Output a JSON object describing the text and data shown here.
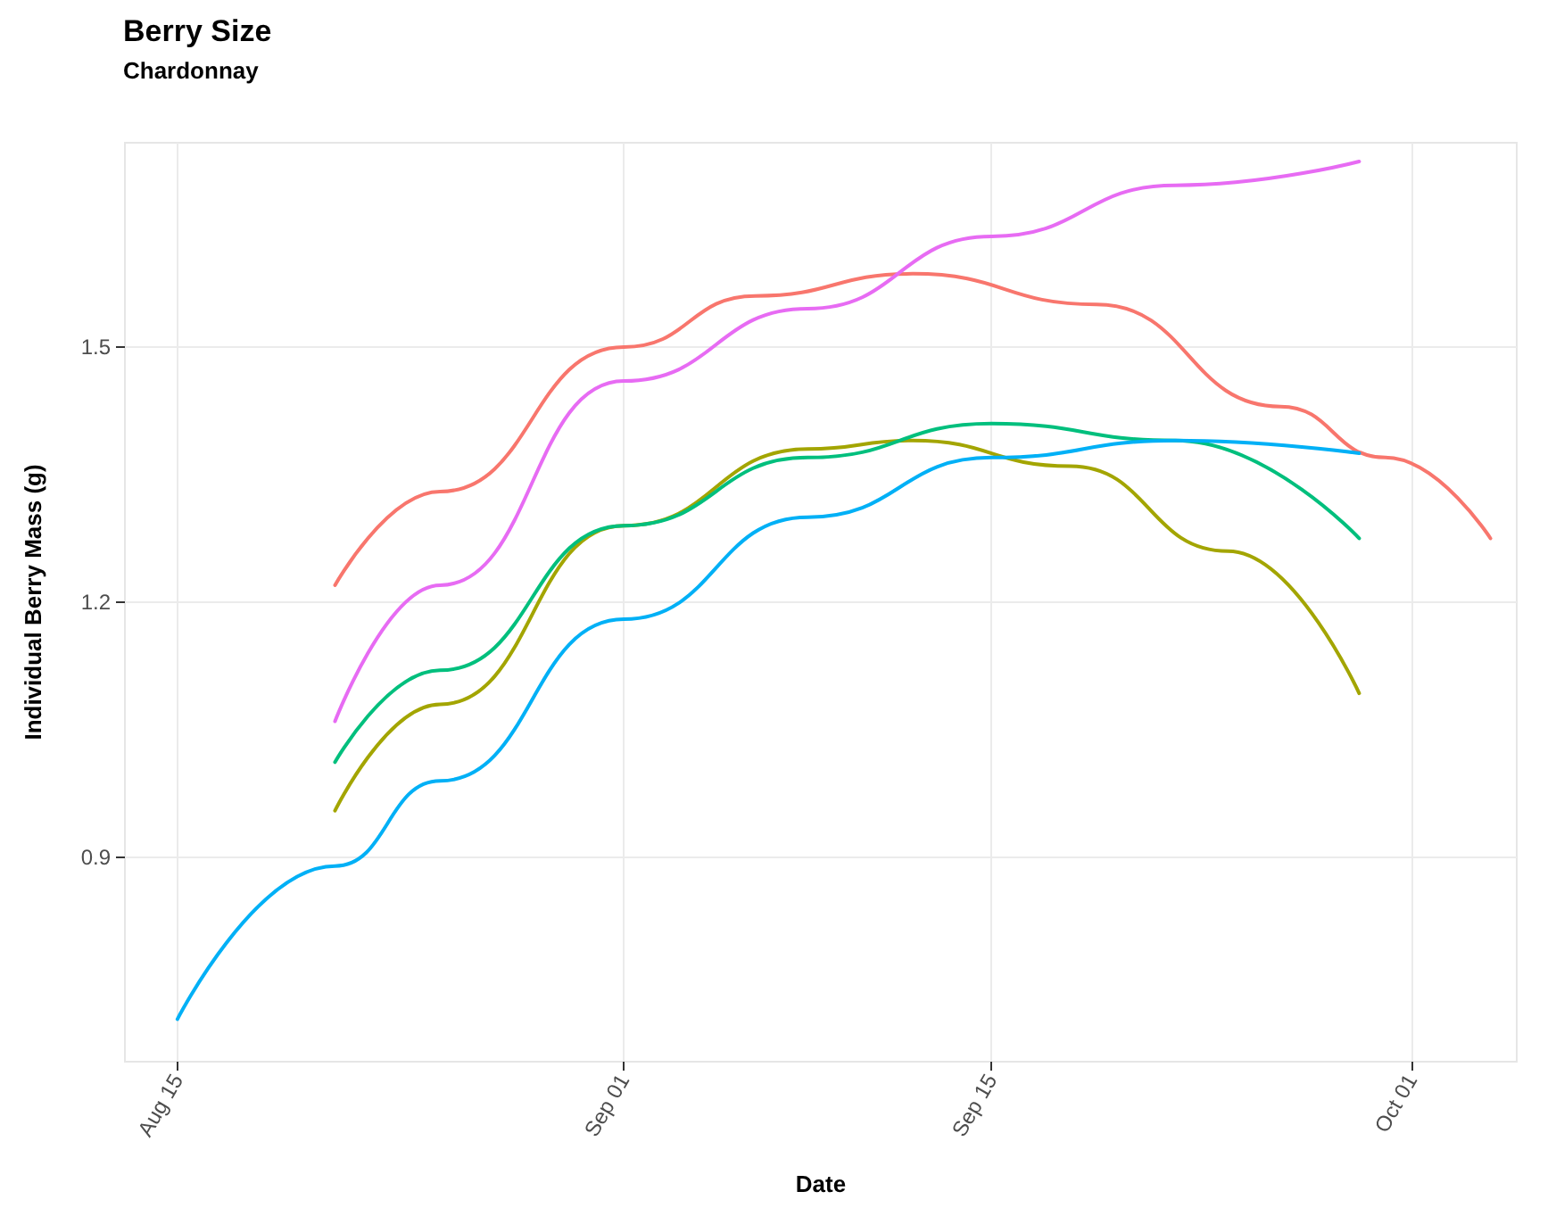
{
  "chart_data": {
    "type": "line",
    "title": "Berry Size",
    "subtitle": "Chardonnay",
    "xlabel": "Date",
    "ylabel": "Individual Berry Mass (g)",
    "xlim": [
      "--08-13",
      "--10-05"
    ],
    "xticks": [
      {
        "value": "--08-15",
        "label": "Aug 15"
      },
      {
        "value": "--09-01",
        "label": "Sep 01"
      },
      {
        "value": "--09-15",
        "label": "Sep 15"
      },
      {
        "value": "--10-01",
        "label": "Oct 01"
      }
    ],
    "ylim": [
      0.66,
      1.74
    ],
    "yticks": [
      0.9,
      1.2,
      1.5
    ],
    "grid": true,
    "marker": "none",
    "line_style": "solid",
    "series": [
      {
        "color": "#f8766d",
        "x": [
          "--08-21",
          "--08-25",
          "--09-01",
          "--09-06",
          "--09-12",
          "--09-19",
          "--09-26",
          "--09-30",
          "--10-04"
        ],
        "values": [
          1.22,
          1.33,
          1.5,
          1.56,
          1.586,
          1.55,
          1.43,
          1.37,
          1.275
        ]
      },
      {
        "color": "#a3a500",
        "x": [
          "--08-21",
          "--08-25",
          "--09-01",
          "--09-08",
          "--09-12",
          "--09-18",
          "--09-24",
          "--09-29"
        ],
        "values": [
          0.955,
          1.08,
          1.29,
          1.38,
          1.39,
          1.36,
          1.26,
          1.093
        ]
      },
      {
        "color": "#00bf7d",
        "x": [
          "--08-21",
          "--08-25",
          "--09-01",
          "--09-08",
          "--09-15",
          "--09-22",
          "--09-29"
        ],
        "values": [
          1.012,
          1.12,
          1.29,
          1.37,
          1.41,
          1.39,
          1.275
        ]
      },
      {
        "color": "#00b0f6",
        "x": [
          "--08-15",
          "--08-21",
          "--08-25",
          "--09-01",
          "--09-08",
          "--09-15",
          "--09-22",
          "--09-29"
        ],
        "values": [
          0.71,
          0.89,
          0.99,
          1.18,
          1.3,
          1.37,
          1.39,
          1.375
        ]
      },
      {
        "color": "#e76bf3",
        "x": [
          "--08-21",
          "--08-25",
          "--09-01",
          "--09-08",
          "--09-15",
          "--09-22",
          "--09-29"
        ],
        "values": [
          1.06,
          1.22,
          1.46,
          1.545,
          1.63,
          1.69,
          1.718
        ]
      }
    ]
  }
}
